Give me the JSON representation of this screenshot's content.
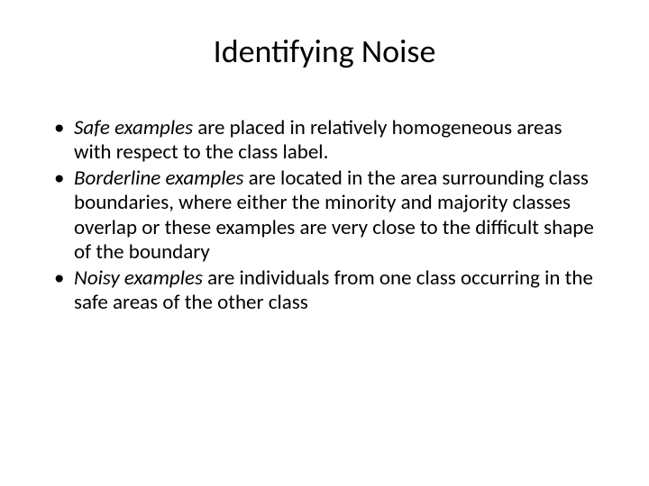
{
  "slide": {
    "title": "Identifying Noise",
    "bullets": [
      {
        "term": "Safe examples",
        "text": " are placed in relatively homogeneous areas with respect to the class label."
      },
      {
        "term": "Borderline examples",
        "text": " are located in the area surrounding class boundaries, where either the minority and majority classes overlap or these examples are very close to the difficult shape of the boundary"
      },
      {
        "term": "Noisy examples",
        "text": " are individuals from one class occurring in the safe areas of the other class"
      }
    ]
  },
  "styling": {
    "background_color": "#ffffff",
    "text_color": "#000000",
    "title_fontsize": 36,
    "body_fontsize": 23,
    "font_family": "Calibri",
    "slide_width": 720,
    "slide_height": 540
  }
}
